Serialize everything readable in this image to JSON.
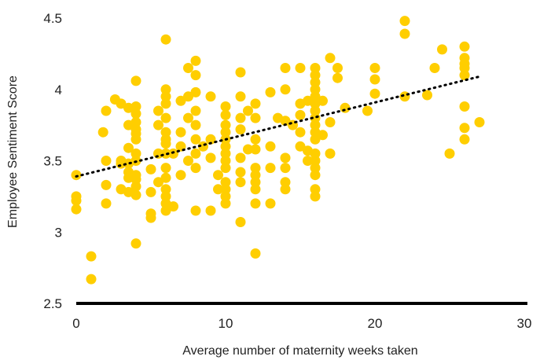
{
  "chart_data": {
    "type": "scatter",
    "xlabel": "Average number of maternity weeks taken",
    "ylabel": "Employee Sentiment Score",
    "xlim": [
      0,
      30
    ],
    "ylim": [
      2.5,
      4.5
    ],
    "x_ticks": [
      "0",
      "10",
      "20",
      "30"
    ],
    "y_ticks": [
      "2.5",
      "3",
      "3.5",
      "4",
      "4.5"
    ],
    "grid": false,
    "legend": "none",
    "colors": {
      "points": "#FFCE00",
      "trendline": "#000000",
      "axis": "#000000"
    },
    "trendline": {
      "style": "dotted",
      "x": [
        0,
        27
      ],
      "y": [
        3.39,
        4.09
      ]
    },
    "series": [
      {
        "points": [
          [
            0,
            3.4
          ],
          [
            0,
            3.25
          ],
          [
            0,
            3.22
          ],
          [
            0,
            3.16
          ],
          [
            1,
            2.83
          ],
          [
            1,
            2.67
          ],
          [
            1.8,
            3.7
          ],
          [
            2,
            3.85
          ],
          [
            2,
            3.5
          ],
          [
            2,
            3.33
          ],
          [
            2,
            3.2
          ],
          [
            2.6,
            3.93
          ],
          [
            3,
            3.9
          ],
          [
            3,
            3.5
          ],
          [
            3,
            3.48
          ],
          [
            3,
            3.3
          ],
          [
            3.5,
            3.87
          ],
          [
            3.5,
            3.75
          ],
          [
            3.5,
            3.59
          ],
          [
            3.5,
            3.48
          ],
          [
            3.5,
            3.42
          ],
          [
            3.5,
            3.38
          ],
          [
            3.5,
            3.28
          ],
          [
            4,
            4.06
          ],
          [
            4,
            3.88
          ],
          [
            4,
            3.83
          ],
          [
            4,
            3.77
          ],
          [
            4,
            3.72
          ],
          [
            4,
            3.69
          ],
          [
            4,
            3.65
          ],
          [
            4,
            3.55
          ],
          [
            4,
            3.5
          ],
          [
            4,
            3.4
          ],
          [
            4,
            3.37
          ],
          [
            4,
            3.32
          ],
          [
            4,
            3.26
          ],
          [
            4,
            2.92
          ],
          [
            5,
            3.44
          ],
          [
            5,
            3.28
          ],
          [
            5,
            3.13
          ],
          [
            5,
            3.1
          ],
          [
            5.5,
            3.85
          ],
          [
            5.5,
            3.75
          ],
          [
            5.5,
            3.55
          ],
          [
            5.5,
            3.35
          ],
          [
            6,
            4.35
          ],
          [
            6,
            4.0
          ],
          [
            6,
            3.95
          ],
          [
            6,
            3.9
          ],
          [
            6,
            3.8
          ],
          [
            6,
            3.7
          ],
          [
            6,
            3.65
          ],
          [
            6,
            3.62
          ],
          [
            6,
            3.55
          ],
          [
            6,
            3.45
          ],
          [
            6,
            3.38
          ],
          [
            6,
            3.3
          ],
          [
            6,
            3.25
          ],
          [
            6,
            3.2
          ],
          [
            6,
            3.15
          ],
          [
            6.5,
            3.55
          ],
          [
            6.5,
            3.18
          ],
          [
            7,
            3.92
          ],
          [
            7,
            3.7
          ],
          [
            7,
            3.6
          ],
          [
            7,
            3.4
          ],
          [
            7.5,
            4.15
          ],
          [
            7.5,
            3.95
          ],
          [
            7.5,
            3.8
          ],
          [
            7.5,
            3.5
          ],
          [
            8,
            4.2
          ],
          [
            8,
            4.1
          ],
          [
            8,
            3.98
          ],
          [
            8,
            3.85
          ],
          [
            8,
            3.75
          ],
          [
            8,
            3.65
          ],
          [
            8,
            3.55
          ],
          [
            8,
            3.45
          ],
          [
            8,
            3.15
          ],
          [
            8.5,
            3.6
          ],
          [
            9,
            3.95
          ],
          [
            9,
            3.65
          ],
          [
            9,
            3.52
          ],
          [
            9,
            3.15
          ],
          [
            9.5,
            3.4
          ],
          [
            9.5,
            3.3
          ],
          [
            10,
            3.88
          ],
          [
            10,
            3.82
          ],
          [
            10,
            3.75
          ],
          [
            10,
            3.7
          ],
          [
            10,
            3.65
          ],
          [
            10,
            3.6
          ],
          [
            10,
            3.55
          ],
          [
            10,
            3.5
          ],
          [
            10,
            3.45
          ],
          [
            10,
            3.35
          ],
          [
            10,
            3.3
          ],
          [
            10,
            3.25
          ],
          [
            10,
            3.2
          ],
          [
            11,
            4.12
          ],
          [
            11,
            3.95
          ],
          [
            11,
            3.8
          ],
          [
            11,
            3.72
          ],
          [
            11,
            3.52
          ],
          [
            11,
            3.42
          ],
          [
            11,
            3.35
          ],
          [
            11,
            3.07
          ],
          [
            11.5,
            3.85
          ],
          [
            11.5,
            3.58
          ],
          [
            12,
            3.9
          ],
          [
            12,
            3.8
          ],
          [
            12,
            3.65
          ],
          [
            12,
            3.58
          ],
          [
            12,
            3.45
          ],
          [
            12,
            3.4
          ],
          [
            12,
            3.35
          ],
          [
            12,
            3.3
          ],
          [
            12,
            3.2
          ],
          [
            12,
            2.85
          ],
          [
            13,
            3.98
          ],
          [
            13,
            3.6
          ],
          [
            13,
            3.45
          ],
          [
            13,
            3.2
          ],
          [
            13.5,
            3.8
          ],
          [
            14,
            4.15
          ],
          [
            14,
            4.0
          ],
          [
            14,
            3.78
          ],
          [
            14,
            3.52
          ],
          [
            14,
            3.45
          ],
          [
            14,
            3.35
          ],
          [
            14,
            3.3
          ],
          [
            14.5,
            3.75
          ],
          [
            15,
            4.15
          ],
          [
            15,
            3.9
          ],
          [
            15,
            3.82
          ],
          [
            15,
            3.7
          ],
          [
            15,
            3.6
          ],
          [
            15.5,
            3.92
          ],
          [
            15.5,
            3.57
          ],
          [
            15.5,
            3.5
          ],
          [
            16,
            4.15
          ],
          [
            16,
            4.1
          ],
          [
            16,
            4.05
          ],
          [
            16,
            4.0
          ],
          [
            16,
            3.95
          ],
          [
            16,
            3.9
          ],
          [
            16,
            3.85
          ],
          [
            16,
            3.8
          ],
          [
            16,
            3.75
          ],
          [
            16,
            3.7
          ],
          [
            16,
            3.65
          ],
          [
            16,
            3.55
          ],
          [
            16,
            3.5
          ],
          [
            16,
            3.45
          ],
          [
            16,
            3.4
          ],
          [
            16,
            3.3
          ],
          [
            16,
            3.25
          ],
          [
            16.5,
            3.92
          ],
          [
            16.5,
            3.68
          ],
          [
            17,
            4.22
          ],
          [
            17,
            3.77
          ],
          [
            17,
            3.55
          ],
          [
            17.5,
            4.15
          ],
          [
            17.5,
            4.08
          ],
          [
            18,
            3.87
          ],
          [
            19.5,
            3.85
          ],
          [
            20,
            4.15
          ],
          [
            20,
            4.07
          ],
          [
            20,
            3.97
          ],
          [
            22,
            4.48
          ],
          [
            22,
            4.39
          ],
          [
            22,
            3.95
          ],
          [
            23.5,
            3.96
          ],
          [
            24,
            4.15
          ],
          [
            24.5,
            4.28
          ],
          [
            25,
            3.55
          ],
          [
            26,
            4.3
          ],
          [
            26,
            4.22
          ],
          [
            26,
            4.18
          ],
          [
            26,
            4.15
          ],
          [
            26,
            4.1
          ],
          [
            26,
            3.88
          ],
          [
            26,
            3.73
          ],
          [
            26,
            3.65
          ],
          [
            27,
            3.77
          ]
        ]
      }
    ]
  }
}
